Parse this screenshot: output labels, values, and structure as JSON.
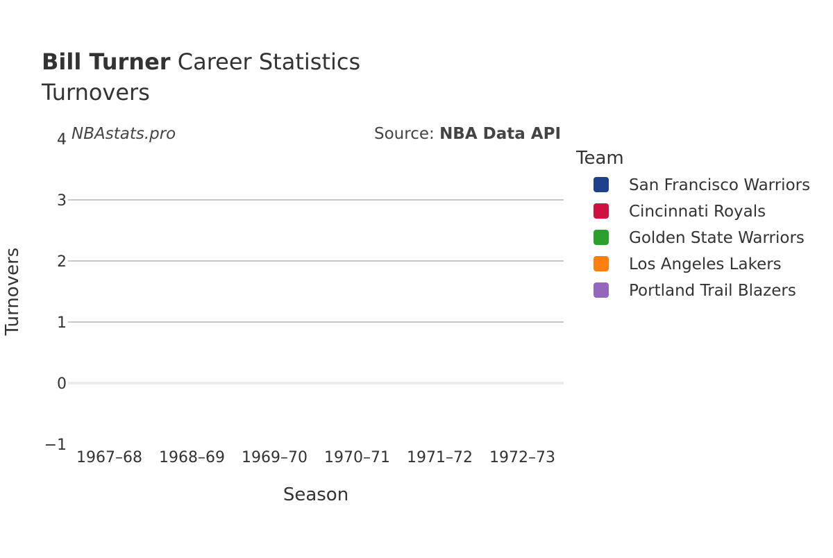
{
  "chart_data": {
    "type": "bar",
    "title_bold": "Bill Turner",
    "title_rest": " Career Statistics",
    "subtitle": "Turnovers",
    "watermark": "NBAstats.pro",
    "source_prefix": "Source: ",
    "source_name": "NBA Data API",
    "xlabel": "Season",
    "ylabel": "Turnovers",
    "categories": [
      "1967–68",
      "1968–69",
      "1969–70",
      "1970–71",
      "1971–72",
      "1972–73"
    ],
    "ylim": [
      -1,
      4
    ],
    "yticks": [
      -1,
      0,
      1,
      2,
      3,
      4
    ],
    "ytick_labels": [
      "−1",
      "0",
      "1",
      "2",
      "3",
      "4"
    ],
    "grid": true,
    "legend": {
      "title": "Team",
      "placement": "right",
      "items": [
        {
          "name": "San Francisco Warriors",
          "color": "#1d428a"
        },
        {
          "name": "Cincinnati Royals",
          "color": "#ce1141"
        },
        {
          "name": "Golden State Warriors",
          "color": "#2ca02c"
        },
        {
          "name": "Los Angeles Lakers",
          "color": "#ff7f0e"
        },
        {
          "name": "Portland Trail Blazers",
          "color": "#9467bd"
        }
      ]
    },
    "series": []
  }
}
